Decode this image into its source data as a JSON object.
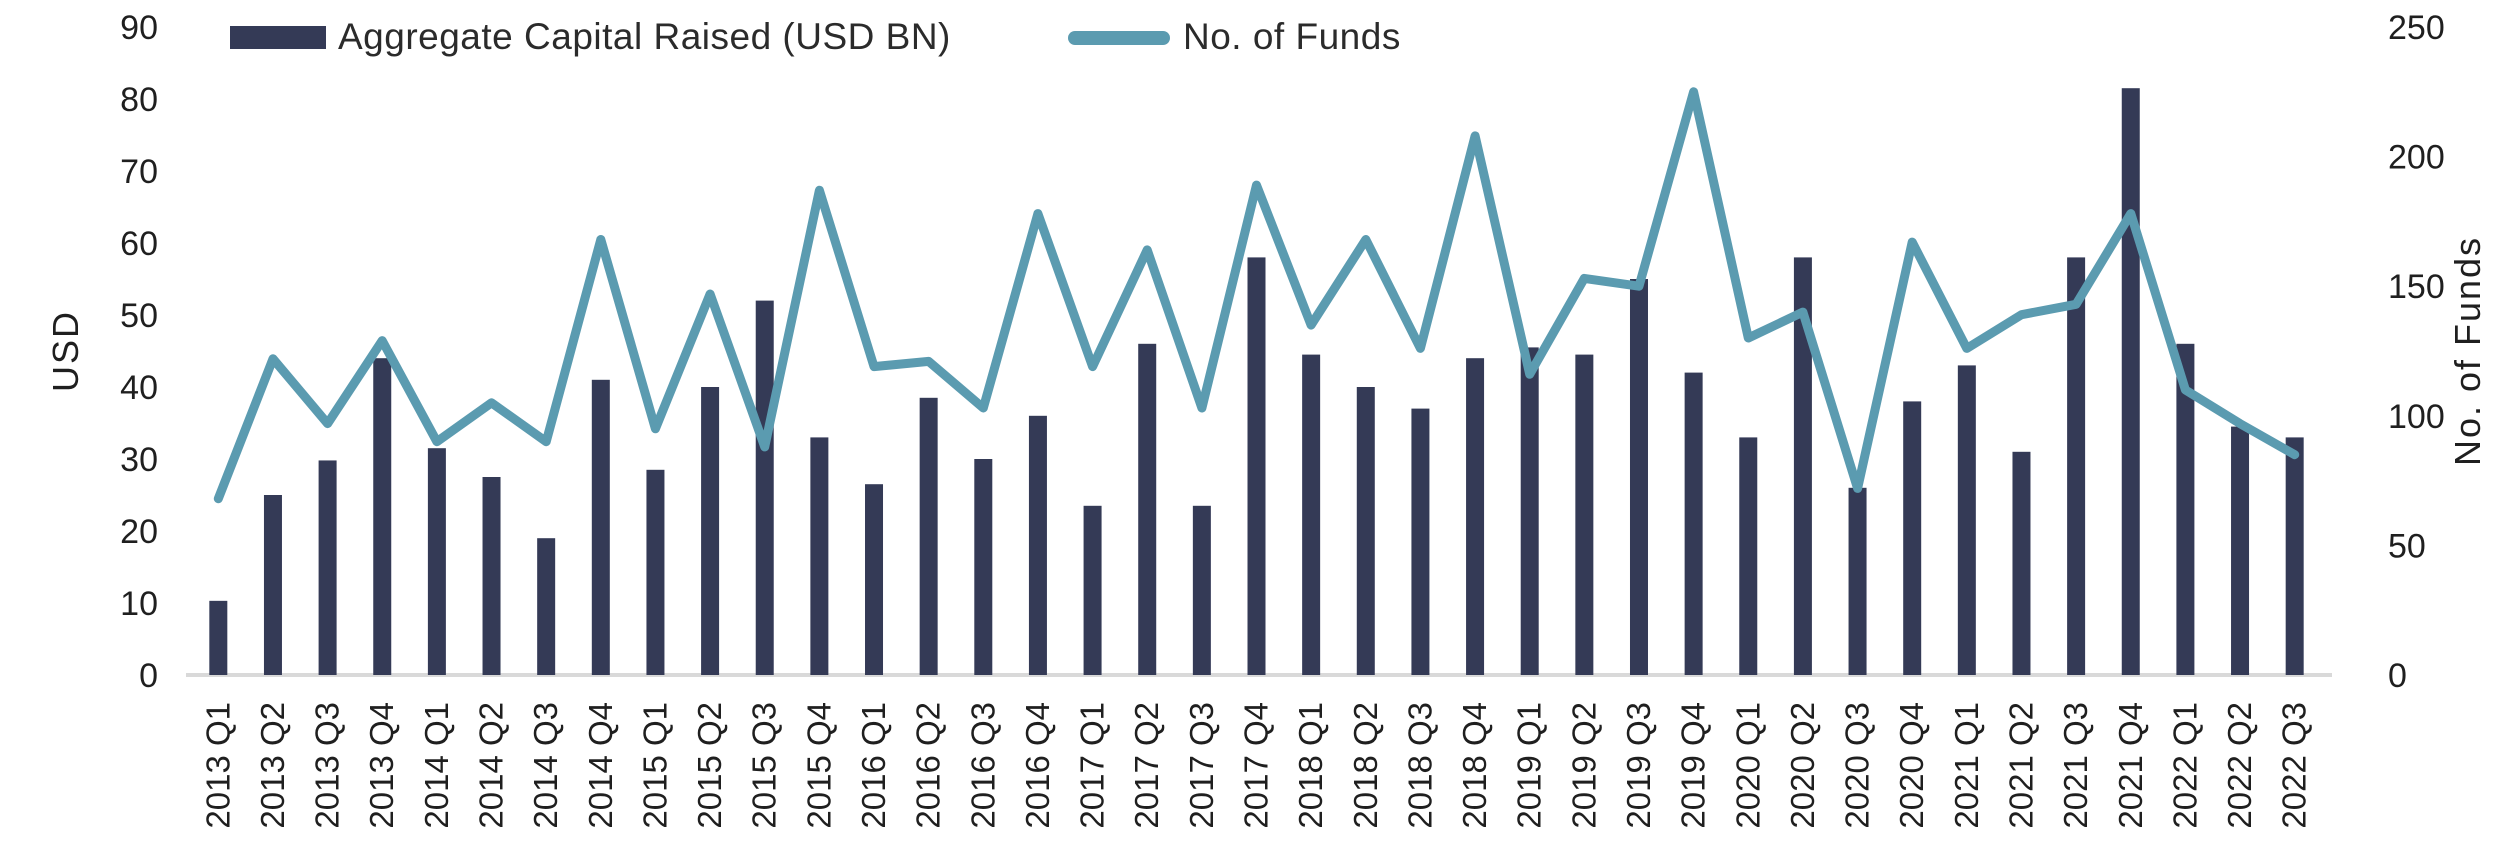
{
  "chart_data": {
    "type": "combo-bar-line",
    "categories": [
      "2013 Q1",
      "2013 Q2",
      "2013 Q3",
      "2013 Q4",
      "2014 Q1",
      "2014 Q2",
      "2014 Q3",
      "2014 Q4",
      "2015 Q1",
      "2015 Q2",
      "2015 Q3",
      "2015 Q4",
      "2016 Q1",
      "2016 Q2",
      "2016 Q3",
      "2016 Q4",
      "2017 Q1",
      "2017 Q2",
      "2017 Q3",
      "2017 Q4",
      "2018 Q1",
      "2018 Q2",
      "2018 Q3",
      "2018 Q4",
      "2019 Q1",
      "2019 Q2",
      "2019 Q3",
      "2019 Q4",
      "2020 Q1",
      "2020 Q2",
      "2020 Q3",
      "2020 Q4",
      "2021 Q1",
      "2021 Q2",
      "2021 Q3",
      "2021 Q4",
      "2022 Q1",
      "2022 Q2",
      "2022 Q3"
    ],
    "series": [
      {
        "name": "Aggregate Capital Raised (USD BN)",
        "type": "bar",
        "axis": "left",
        "color": "#343a56",
        "values": [
          10.3,
          25,
          29.8,
          44,
          31.5,
          27.5,
          19,
          41,
          28.5,
          40,
          52,
          33,
          26.5,
          38.5,
          30,
          36,
          23.5,
          46,
          23.5,
          58,
          44.5,
          40,
          37,
          44,
          45.5,
          44.5,
          55,
          42,
          33,
          58,
          26,
          38,
          43,
          31,
          58,
          81.5,
          46,
          34.5,
          33
        ]
      },
      {
        "name": "No. of Funds",
        "type": "line",
        "axis": "right",
        "color": "#5b9bb0",
        "values": [
          68,
          122,
          97,
          129,
          90,
          105,
          90,
          168,
          95,
          147,
          88,
          187,
          119,
          121,
          103,
          178,
          119,
          164,
          103,
          189,
          135,
          168,
          126,
          208,
          116,
          153,
          150,
          225,
          130,
          140,
          72,
          167,
          126,
          139,
          143,
          178,
          110,
          97,
          85
        ]
      }
    ],
    "left_axis": {
      "label": "USD",
      "min": 0,
      "max": 90,
      "ticks": [
        0,
        10,
        20,
        30,
        40,
        50,
        60,
        70,
        80,
        90
      ]
    },
    "right_axis": {
      "label": "No. of Funds",
      "min": 0,
      "max": 250,
      "ticks": [
        0,
        50,
        100,
        150,
        200,
        250
      ]
    },
    "legend": {
      "bar_label": "Aggregate Capital Raised (USD BN)",
      "line_label": "No. of Funds"
    },
    "grid": false,
    "legend_position": "top-left",
    "colors": {
      "bar": "#343a56",
      "line": "#5b9bb0",
      "axis_line": "#d9d9d9",
      "text": "#1f1f1f"
    }
  }
}
